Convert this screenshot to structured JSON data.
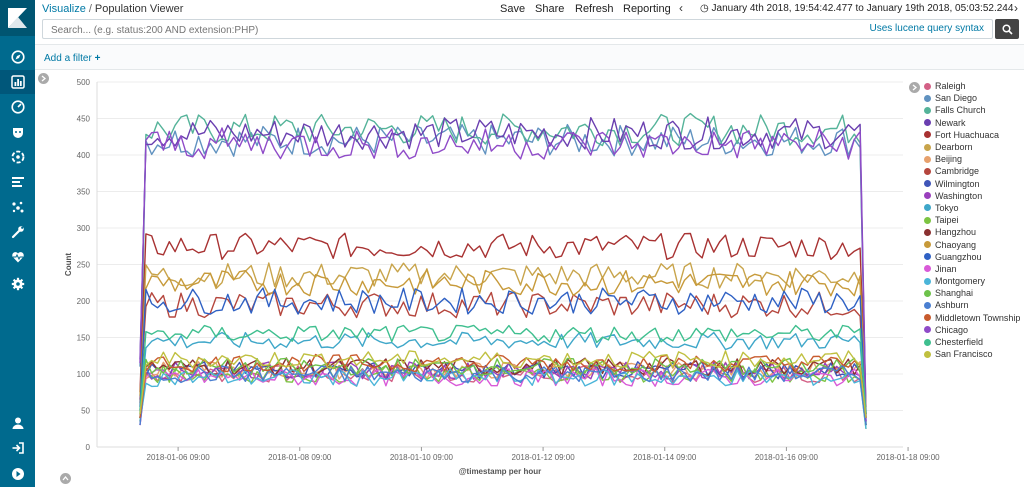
{
  "breadcrumb": {
    "root": "Visualize",
    "separator": "/",
    "current": "Population Viewer"
  },
  "menu": {
    "save": "Save",
    "share": "Share",
    "refresh": "Refresh",
    "reporting": "Reporting"
  },
  "time_range": "January 4th 2018, 19:54:42.477 to January 19th 2018, 05:03:52.244",
  "search": {
    "placeholder": "Search... (e.g. status:200 AND extension:PHP)",
    "lucene_link": "Uses lucene query syntax"
  },
  "filters": {
    "add_label": "Add a filter"
  },
  "nav_icons": [
    "discover-icon",
    "visualize-icon",
    "dashboard-icon",
    "timelion-icon",
    "apm-icon",
    "ml-icon",
    "graph-icon",
    "devtools-icon",
    "monitoring-icon",
    "management-icon"
  ],
  "colors": {
    "sidebar": "#006a8e",
    "link": "#0079a5"
  },
  "chart_data": {
    "type": "line",
    "xlabel": "@timestamp per hour",
    "ylabel": "Count",
    "ylim": [
      0,
      500
    ],
    "yticks": [
      0,
      50,
      100,
      150,
      200,
      250,
      300,
      350,
      400,
      450,
      500
    ],
    "x_ticks": [
      "2018-01-06 09:00",
      "2018-01-08 09:00",
      "2018-01-10 09:00",
      "2018-01-12 09:00",
      "2018-01-14 09:00",
      "2018-01-16 09:00",
      "2018-01-18 09:00"
    ],
    "xlim": [
      "2018-01-05 01:00",
      "2018-01-18 07:00"
    ],
    "grid": true,
    "legend_position": "right",
    "series": [
      {
        "name": "Raleigh",
        "color": "#d36086",
        "level": 100,
        "start": 30,
        "end": 35
      },
      {
        "name": "San Diego",
        "color": "#6092c0",
        "level": 420,
        "start": 110,
        "end": 40
      },
      {
        "name": "Falls Church",
        "color": "#54b399",
        "level": 435,
        "start": 45,
        "end": 30
      },
      {
        "name": "Newark",
        "color": "#6a3fb0",
        "level": 430,
        "start": 120,
        "end": 45
      },
      {
        "name": "Fort Huachuaca",
        "color": "#a83232",
        "level": 275,
        "start": 75,
        "end": 40
      },
      {
        "name": "Dearborn",
        "color": "#c8a44b",
        "level": 235,
        "start": 60,
        "end": 55
      },
      {
        "name": "Beijing",
        "color": "#e7a16d",
        "level": 105,
        "start": 35,
        "end": 30
      },
      {
        "name": "Cambridge",
        "color": "#b5463d",
        "level": 195,
        "start": 65,
        "end": 40
      },
      {
        "name": "Wilmington",
        "color": "#3f55b8",
        "level": 105,
        "start": 40,
        "end": 30
      },
      {
        "name": "Washington",
        "color": "#9a3fbd",
        "level": 105,
        "start": 40,
        "end": 40
      },
      {
        "name": "Tokyo",
        "color": "#3fa7c9",
        "level": 145,
        "start": 50,
        "end": 35
      },
      {
        "name": "Taipei",
        "color": "#7cc442",
        "level": 100,
        "start": 35,
        "end": 25
      },
      {
        "name": "Hangzhou",
        "color": "#8a3030",
        "level": 110,
        "start": 40,
        "end": 45
      },
      {
        "name": "Chaoyang",
        "color": "#c79a3a",
        "level": 225,
        "start": 70,
        "end": 45
      },
      {
        "name": "Guangzhou",
        "color": "#2f61c4",
        "level": 200,
        "start": 55,
        "end": 30
      },
      {
        "name": "Jinan",
        "color": "#d95ad8",
        "level": 95,
        "start": 30,
        "end": 35
      },
      {
        "name": "Montgomery",
        "color": "#4bb5d9",
        "level": 95,
        "start": 35,
        "end": 25
      },
      {
        "name": "Shanghai",
        "color": "#6dc24a",
        "level": 110,
        "start": 40,
        "end": 30
      },
      {
        "name": "Ashburn",
        "color": "#4a7fd1",
        "level": 100,
        "start": 30,
        "end": 30
      },
      {
        "name": "Middletown Township",
        "color": "#c85b2e",
        "level": 115,
        "start": 40,
        "end": 40
      },
      {
        "name": "Chicago",
        "color": "#8f4bc8",
        "level": 415,
        "start": 115,
        "end": 35
      },
      {
        "name": "Chesterfield",
        "color": "#3fbf8f",
        "level": 155,
        "start": 50,
        "end": 45
      },
      {
        "name": "San Francisco",
        "color": "#c0c040",
        "level": 120,
        "start": 45,
        "end": 40
      }
    ]
  }
}
